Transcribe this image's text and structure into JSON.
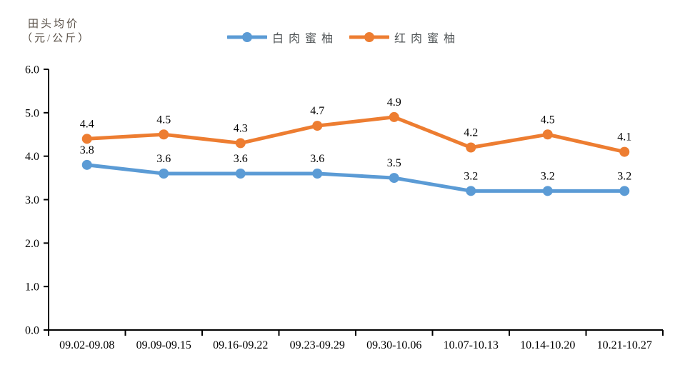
{
  "axis_title": {
    "line1": "田头均价",
    "line2": "（元/公斤）"
  },
  "legend": {
    "items": [
      {
        "id": "white-pomelo",
        "label": "白肉蜜柚",
        "color": "#5B9BD5"
      },
      {
        "id": "red-pomelo",
        "label": "红肉蜜柚",
        "color": "#ED7D31"
      }
    ]
  },
  "chart_data": {
    "type": "line",
    "title": "",
    "ylabel": "田头均价（元/公斤）",
    "xlabel": "",
    "categories": [
      "09.02-09.08",
      "09.09-09.15",
      "09.16-09.22",
      "09.23-09.29",
      "09.30-10.06",
      "10.07-10.13",
      "10.14-10.20",
      "10.21-10.27"
    ],
    "series": [
      {
        "id": "white-pomelo",
        "name": "白肉蜜柚",
        "color": "#5B9BD5",
        "values": [
          3.8,
          3.6,
          3.6,
          3.6,
          3.5,
          3.2,
          3.2,
          3.2
        ]
      },
      {
        "id": "red-pomelo",
        "name": "红肉蜜柚",
        "color": "#ED7D31",
        "values": [
          4.4,
          4.5,
          4.3,
          4.7,
          4.9,
          4.2,
          4.5,
          4.1
        ]
      }
    ],
    "ylim": [
      0.0,
      6.0
    ],
    "yticks": [
      0,
      1,
      2,
      3,
      4,
      5,
      6
    ],
    "ytick_labels": [
      "0.0",
      "1.0",
      "2.0",
      "3.0",
      "4.0",
      "5.0",
      "6.0"
    ],
    "grid": false,
    "legend_position": "top",
    "data_labels": true,
    "axis_color": "#000000",
    "tick_label_color": "#000000",
    "data_label_color": "#000000"
  }
}
